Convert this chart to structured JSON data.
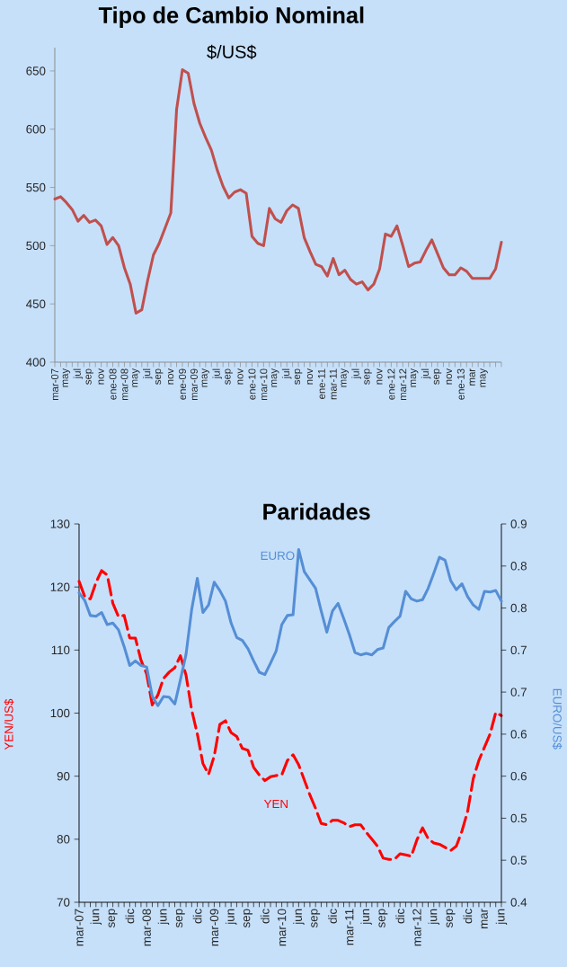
{
  "chart_data": [
    {
      "type": "line",
      "title": "Tipo de Cambio Nominal",
      "subtitle": "$/US$",
      "categories": [
        "mar-07",
        null,
        "may",
        null,
        "jul",
        null,
        "sep",
        null,
        "nov",
        null,
        "ene-08",
        null,
        "mar-08",
        null,
        "may",
        null,
        "jul",
        null,
        "sep",
        null,
        "nov",
        null,
        "ene-09",
        null,
        "mar-09",
        null,
        "may",
        null,
        "jul",
        null,
        "sep",
        null,
        "nov",
        null,
        "ene-10",
        null,
        "mar-10",
        null,
        "may",
        null,
        "jul",
        null,
        "sep",
        null,
        "nov",
        null,
        "ene-11",
        null,
        "mar-11",
        null,
        "may",
        null,
        "jul",
        null,
        "sep",
        null,
        "nov",
        null,
        "ene-12",
        null,
        "mar-12",
        null,
        "may",
        null,
        "jul",
        null,
        "sep",
        null,
        "nov",
        null,
        "ene-13",
        null,
        "mar",
        null,
        "may",
        null,
        null,
        null
      ],
      "values": [
        540,
        542,
        537,
        531,
        521,
        526,
        520,
        522,
        517,
        501,
        507,
        500,
        481,
        467,
        442,
        445,
        470,
        492,
        502,
        515,
        528,
        617,
        651,
        648,
        622,
        605,
        593,
        582,
        565,
        551,
        541,
        546,
        548,
        545,
        508,
        502,
        500,
        532,
        523,
        520,
        530,
        535,
        532,
        507,
        495,
        484,
        482,
        474,
        489,
        475,
        479,
        471,
        467,
        469,
        462,
        467,
        480,
        510,
        508,
        517,
        500,
        482,
        485,
        486,
        496,
        505,
        493,
        481,
        475,
        475,
        481,
        478,
        472,
        472,
        472,
        472,
        480,
        503
      ],
      "color": "#c0504d",
      "ylim": [
        400,
        670
      ],
      "yticks": [
        400,
        450,
        500,
        550,
        600,
        650
      ]
    },
    {
      "type": "line",
      "title": "Paridades",
      "ylabel": "YEN/US$",
      "y2label": "EURO/US$",
      "categories": [
        "mar-07",
        null,
        null,
        "jun",
        null,
        null,
        "sep",
        null,
        null,
        "dic",
        null,
        null,
        "mar-08",
        null,
        null,
        "jun",
        null,
        null,
        "sep",
        null,
        null,
        "dic",
        null,
        null,
        "mar-09",
        null,
        null,
        "jun",
        null,
        null,
        "sep",
        null,
        null,
        "dic",
        null,
        null,
        "mar-10",
        null,
        null,
        "jun",
        null,
        null,
        "sep",
        null,
        null,
        "dic",
        null,
        null,
        "mar-11",
        null,
        null,
        "jun",
        null,
        null,
        "sep",
        null,
        null,
        "dic",
        null,
        null,
        "mar-12",
        null,
        null,
        "jun",
        null,
        null,
        "sep",
        null,
        null,
        "dic",
        null,
        null,
        "mar",
        null,
        null,
        "jun"
      ],
      "series": [
        {
          "name": "EURO",
          "color": "#558ed5",
          "axis": "y2",
          "line_style": "solid",
          "values": [
            0.809,
            0.799,
            0.779,
            0.778,
            0.783,
            0.767,
            0.769,
            0.76,
            0.738,
            0.713,
            0.719,
            0.713,
            0.711,
            0.672,
            0.66,
            0.672,
            0.671,
            0.662,
            0.694,
            0.728,
            0.787,
            0.828,
            0.783,
            0.793,
            0.823,
            0.812,
            0.798,
            0.769,
            0.75,
            0.746,
            0.735,
            0.719,
            0.704,
            0.701,
            0.716,
            0.732,
            0.767,
            0.779,
            0.78,
            0.866,
            0.837,
            0.826,
            0.815,
            0.785,
            0.757,
            0.785,
            0.795,
            0.775,
            0.754,
            0.73,
            0.727,
            0.729,
            0.727,
            0.734,
            0.736,
            0.763,
            0.771,
            0.778,
            0.811,
            0.801,
            0.798,
            0.8,
            0.815,
            0.835,
            0.856,
            0.852,
            0.825,
            0.813,
            0.821,
            0.804,
            0.793,
            0.787,
            0.811,
            0.81,
            0.812,
            0.798
          ]
        },
        {
          "name": "YEN",
          "color": "#ff0000",
          "axis": "y",
          "line_style": "dashed",
          "values": [
            120.9,
            118.5,
            118.1,
            120.7,
            122.6,
            121.9,
            117.4,
            115.3,
            115.5,
            111.9,
            111.9,
            108.4,
            106.2,
            101.3,
            102.9,
            105.5,
            106.5,
            107.2,
            109.1,
            106.0,
            100.5,
            96.7,
            92.0,
            90.3,
            93.2,
            98.2,
            98.8,
            96.9,
            96.3,
            94.4,
            94.1,
            91.4,
            90.2,
            89.3,
            89.9,
            90.1,
            90.2,
            92.5,
            93.4,
            91.8,
            89.4,
            87.0,
            84.9,
            82.5,
            82.3,
            83.0,
            83.0,
            82.6,
            82.0,
            82.3,
            82.3,
            81.1,
            80.0,
            78.9,
            77.0,
            76.8,
            76.8,
            77.7,
            77.5,
            77.3,
            79.9,
            81.8,
            80.1,
            79.4,
            79.2,
            78.7,
            78.2,
            78.9,
            81.3,
            84.4,
            89.6,
            92.5,
            94.6,
            96.7,
            100.1,
            99.6
          ]
        }
      ],
      "ylim": [
        70,
        130
      ],
      "yticks": [
        70,
        80,
        90,
        100,
        110,
        120,
        130
      ],
      "y2lim": [
        0.4,
        0.9
      ],
      "y2ticks": [
        0.4,
        {
          "value": 0.4556,
          "label": "0.5"
        },
        {
          "value": 0.5111,
          "label": "0.5"
        },
        {
          "value": 0.5667,
          "label": "0.6"
        },
        {
          "value": 0.6222,
          "label": "0.6"
        },
        {
          "value": 0.6778,
          "label": "0.7"
        },
        {
          "value": 0.7333,
          "label": "0.7"
        },
        {
          "value": 0.7889,
          "label": "0.8"
        },
        {
          "value": 0.8444,
          "label": "0.8"
        },
        0.9
      ]
    }
  ]
}
